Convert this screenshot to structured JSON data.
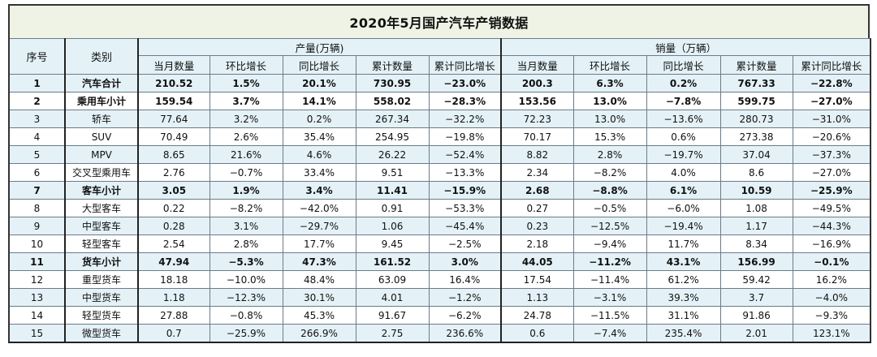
{
  "title": "2020年5月国产汽车产销数据",
  "headers": {
    "index": "序号",
    "category": "类别",
    "production_group": "产量(万辆)",
    "sales_group": "销量（万辆）",
    "columns": [
      "当月数量",
      "环比增长",
      "同比增长",
      "累计数量",
      "累计同比增长"
    ]
  },
  "rows": [
    {
      "idx": "1",
      "cat": "汽车合计",
      "bold": true,
      "p": [
        "210.52",
        "1.5%",
        "20.1%",
        "730.95",
        "−23.0%"
      ],
      "s": [
        "200.3",
        "6.3%",
        "0.2%",
        "767.33",
        "−22.8%"
      ]
    },
    {
      "idx": "2",
      "cat": "乘用车小计",
      "bold": true,
      "p": [
        "159.54",
        "3.7%",
        "14.1%",
        "558.02",
        "−28.3%"
      ],
      "s": [
        "153.56",
        "13.0%",
        "−7.8%",
        "599.75",
        "−27.0%"
      ]
    },
    {
      "idx": "3",
      "cat": "轿车",
      "bold": false,
      "p": [
        "77.64",
        "3.2%",
        "0.2%",
        "267.34",
        "−32.2%"
      ],
      "s": [
        "72.23",
        "13.0%",
        "−13.6%",
        "280.73",
        "−31.0%"
      ]
    },
    {
      "idx": "4",
      "cat": "SUV",
      "bold": false,
      "p": [
        "70.49",
        "2.6%",
        "35.4%",
        "254.95",
        "−19.8%"
      ],
      "s": [
        "70.17",
        "15.3%",
        "0.6%",
        "273.38",
        "−20.6%"
      ]
    },
    {
      "idx": "5",
      "cat": "MPV",
      "bold": false,
      "p": [
        "8.65",
        "21.6%",
        "4.6%",
        "26.22",
        "−52.4%"
      ],
      "s": [
        "8.82",
        "2.8%",
        "−19.7%",
        "37.04",
        "−37.3%"
      ]
    },
    {
      "idx": "6",
      "cat": "交叉型乘用车",
      "bold": false,
      "p": [
        "2.76",
        "−0.7%",
        "33.4%",
        "9.51",
        "−13.3%"
      ],
      "s": [
        "2.34",
        "−8.2%",
        "4.0%",
        "8.6",
        "−27.0%"
      ]
    },
    {
      "idx": "7",
      "cat": "客车小计",
      "bold": true,
      "p": [
        "3.05",
        "1.9%",
        "3.4%",
        "11.41",
        "−15.9%"
      ],
      "s": [
        "2.68",
        "−8.8%",
        "6.1%",
        "10.59",
        "−25.9%"
      ]
    },
    {
      "idx": "8",
      "cat": "大型客车",
      "bold": false,
      "p": [
        "0.22",
        "−8.2%",
        "−42.0%",
        "0.91",
        "−53.3%"
      ],
      "s": [
        "0.27",
        "−0.5%",
        "−6.0%",
        "1.08",
        "−49.5%"
      ]
    },
    {
      "idx": "9",
      "cat": "中型客车",
      "bold": false,
      "p": [
        "0.28",
        "3.1%",
        "−29.7%",
        "1.06",
        "−45.4%"
      ],
      "s": [
        "0.23",
        "−12.5%",
        "−19.4%",
        "1.17",
        "−44.3%"
      ]
    },
    {
      "idx": "10",
      "cat": "轻型客车",
      "bold": false,
      "p": [
        "2.54",
        "2.8%",
        "17.7%",
        "9.45",
        "−2.5%"
      ],
      "s": [
        "2.18",
        "−9.4%",
        "11.7%",
        "8.34",
        "−16.9%"
      ]
    },
    {
      "idx": "11",
      "cat": "货车小计",
      "bold": true,
      "p": [
        "47.94",
        "−5.3%",
        "47.3%",
        "161.52",
        "3.0%"
      ],
      "s": [
        "44.05",
        "−11.2%",
        "43.1%",
        "156.99",
        "−0.1%"
      ]
    },
    {
      "idx": "12",
      "cat": "重型货车",
      "bold": false,
      "p": [
        "18.18",
        "−10.0%",
        "48.4%",
        "63.09",
        "16.4%"
      ],
      "s": [
        "17.54",
        "−11.4%",
        "61.2%",
        "59.42",
        "16.2%"
      ]
    },
    {
      "idx": "13",
      "cat": "中型货车",
      "bold": false,
      "p": [
        "1.18",
        "−12.3%",
        "30.1%",
        "4.01",
        "−1.2%"
      ],
      "s": [
        "1.13",
        "−3.1%",
        "39.3%",
        "3.7",
        "−4.0%"
      ]
    },
    {
      "idx": "14",
      "cat": "轻型货车",
      "bold": false,
      "p": [
        "27.88",
        "−0.8%",
        "45.3%",
        "91.67",
        "−6.2%"
      ],
      "s": [
        "24.78",
        "−11.5%",
        "31.1%",
        "91.86",
        "−9.3%"
      ]
    },
    {
      "idx": "15",
      "cat": "微型货车",
      "bold": false,
      "p": [
        "0.7",
        "−25.9%",
        "266.9%",
        "2.75",
        "236.6%"
      ],
      "s": [
        "0.6",
        "−7.4%",
        "235.4%",
        "2.01",
        "123.1%"
      ]
    }
  ]
}
